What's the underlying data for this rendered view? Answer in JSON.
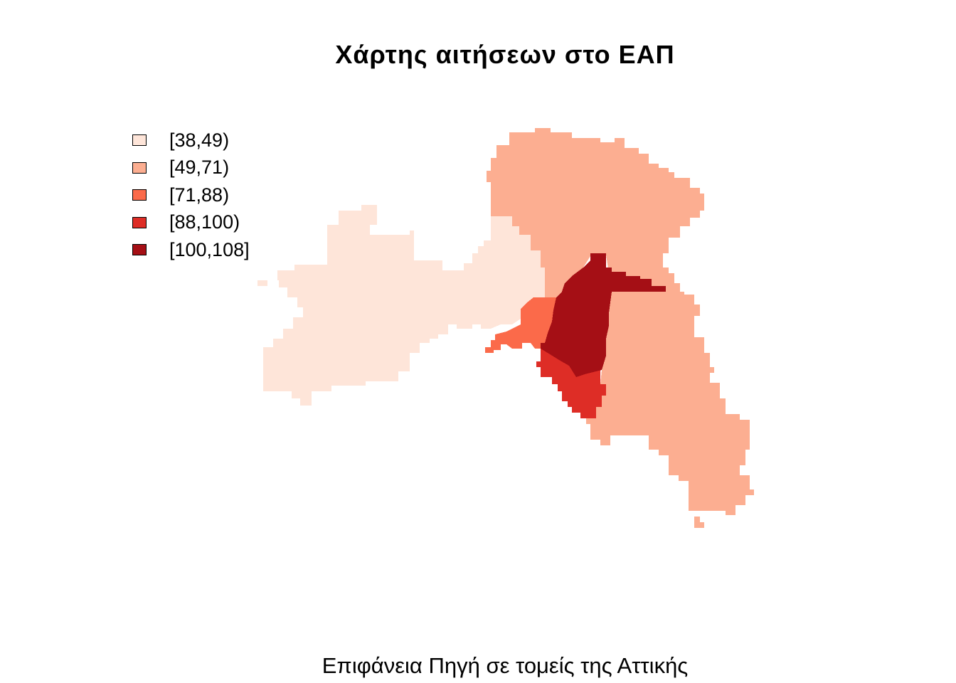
{
  "title": "Χάρτης αιτήσεων στο ΕΑΠ",
  "caption": "Επιφάνεια Πηγή σε τομείς της Αττικής",
  "legend": [
    {
      "label": "[38,49)",
      "color": "#fee5d9"
    },
    {
      "label": "[49,71)",
      "color": "#fcae91"
    },
    {
      "label": "[71,88)",
      "color": "#fb6a4a"
    },
    {
      "label": "[88,100)",
      "color": "#de2d26"
    },
    {
      "label": "[100,108]",
      "color": "#a50f15"
    }
  ],
  "regions": [
    {
      "name": "west-attica",
      "class": "[38,49)",
      "color": "#fee5d9"
    },
    {
      "name": "north-east-attica",
      "class": "[49,71)",
      "color": "#fcae91"
    },
    {
      "name": "east-attica",
      "class": "[49,71)",
      "color": "#fcae91"
    },
    {
      "name": "piraeus",
      "class": "[71,88)",
      "color": "#fb6a4a"
    },
    {
      "name": "south-athens",
      "class": "[88,100)",
      "color": "#de2d26"
    },
    {
      "name": "central-athens",
      "class": "[100,108]",
      "color": "#a50f15"
    }
  ]
}
